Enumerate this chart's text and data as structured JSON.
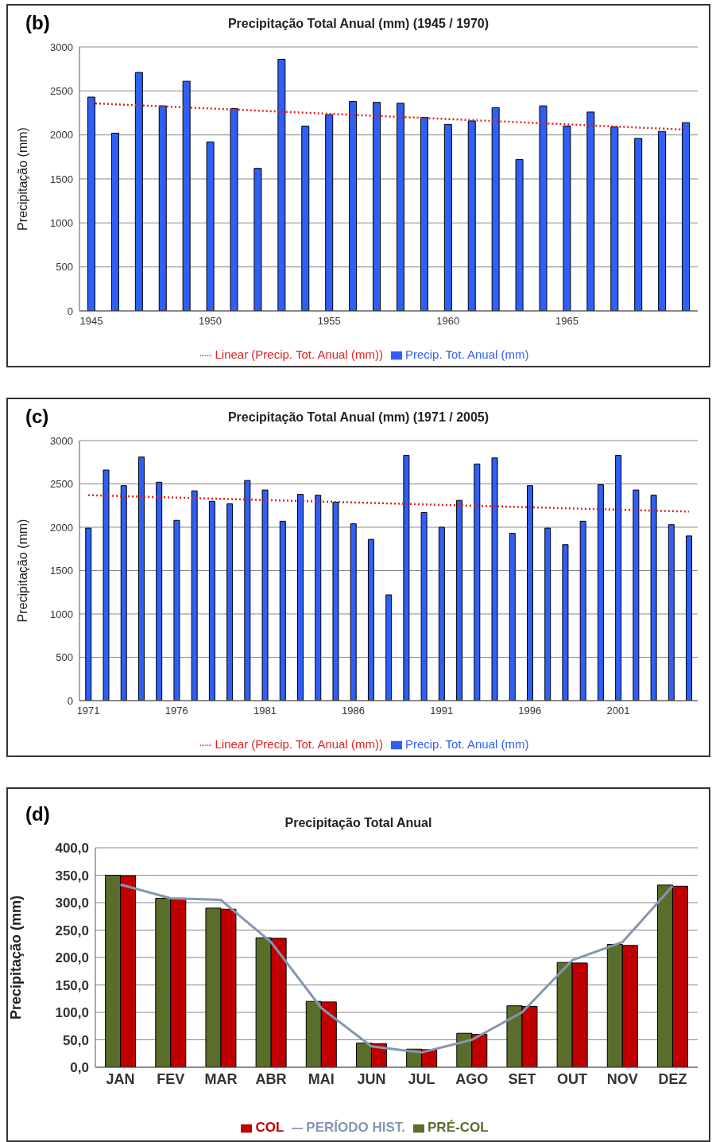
{
  "chart_data": [
    {
      "type": "bar",
      "title": "Precipitação Total Anual (mm) (1945 / 1970)",
      "ylabel": "Precipitação (mm)",
      "annotations": [
        "(b)"
      ],
      "categories": [
        "1945",
        null,
        null,
        null,
        null,
        "1950",
        null,
        null,
        null,
        null,
        "1955",
        null,
        null,
        null,
        null,
        "1960",
        null,
        null,
        null,
        null,
        "1965",
        null,
        null,
        null,
        null,
        null
      ],
      "series": [
        {
          "name": "Precip. Tot. Anual (mm)",
          "color": "#2f5ff5",
          "values": [
            2430,
            2020,
            2710,
            2330,
            2610,
            1920,
            2300,
            1620,
            2860,
            2100,
            2230,
            2380,
            2370,
            2360,
            2200,
            2120,
            2160,
            2310,
            1720,
            2330,
            2100,
            2260,
            2090,
            1960,
            2040,
            2140
          ]
        },
        {
          "name": "Linear (Precip. Tot. Anual (mm))",
          "type": "line",
          "line_style": "dotted",
          "color": "#e02020",
          "values": [
            2360,
            null,
            null,
            null,
            null,
            null,
            null,
            null,
            null,
            null,
            null,
            null,
            null,
            null,
            null,
            null,
            null,
            null,
            null,
            null,
            null,
            null,
            null,
            null,
            null,
            2060
          ]
        }
      ],
      "ylim": [
        0,
        3000
      ],
      "yticks": [
        0,
        500,
        1000,
        1500,
        2000,
        2500,
        3000
      ],
      "grid": "y",
      "legend": "bottom"
    },
    {
      "type": "bar",
      "title": "Precipitação Total Anual (mm)  (1971 / 2005)",
      "ylabel": "Precipitação (mm)",
      "annotations": [
        "(c)"
      ],
      "categories": [
        "1971",
        null,
        null,
        null,
        null,
        "1976",
        null,
        null,
        null,
        null,
        "1981",
        null,
        null,
        null,
        null,
        "1986",
        null,
        null,
        null,
        null,
        "1991",
        null,
        null,
        null,
        null,
        "1996",
        null,
        null,
        null,
        null,
        "2001",
        null,
        null,
        null,
        null
      ],
      "series": [
        {
          "name": "Precip. Tot. Anual (mm)",
          "color": "#2f5ff5",
          "values": [
            1990,
            2660,
            2480,
            2810,
            2520,
            2080,
            2420,
            2300,
            2270,
            2540,
            2430,
            2070,
            2380,
            2370,
            2290,
            2040,
            1860,
            1220,
            2830,
            2170,
            2000,
            2310,
            2730,
            2800,
            1930,
            2480,
            1990,
            1800,
            2070,
            2490,
            2830,
            2430,
            2370,
            2030,
            1900
          ]
        },
        {
          "name": "Linear (Precip. Tot. Anual (mm))",
          "type": "line",
          "line_style": "dotted",
          "color": "#e02020",
          "values": [
            2370,
            null,
            null,
            null,
            null,
            null,
            null,
            null,
            null,
            null,
            null,
            null,
            null,
            null,
            null,
            null,
            null,
            null,
            null,
            null,
            null,
            null,
            null,
            null,
            null,
            null,
            null,
            null,
            null,
            null,
            null,
            null,
            null,
            null,
            2180
          ]
        }
      ],
      "ylim": [
        0,
        3000
      ],
      "yticks": [
        0,
        500,
        1000,
        1500,
        2000,
        2500,
        3000
      ],
      "grid": "y",
      "legend": "bottom"
    },
    {
      "type": "bar",
      "title": "Precipitação Total Anual",
      "ylabel": "Precipitação (mm)",
      "annotations": [
        "(d)"
      ],
      "categories": [
        "JAN",
        "FEV",
        "MAR",
        "ABR",
        "MAI",
        "JUN",
        "JUL",
        "AGO",
        "SET",
        "OUT",
        "NOV",
        "DEZ"
      ],
      "series": [
        {
          "name": "PRÉ-COL",
          "color": "#5a6e2c",
          "values": [
            350,
            308,
            290,
            236,
            120,
            44,
            33,
            62,
            112,
            191,
            224,
            332
          ]
        },
        {
          "name": "COL",
          "color": "#c00000",
          "values": [
            349,
            308,
            288,
            235,
            119,
            43,
            32,
            60,
            111,
            190,
            222,
            330
          ]
        },
        {
          "name": "PERÍODO HIST.",
          "type": "line",
          "color": "#8497b0",
          "values": [
            333,
            308,
            305,
            228,
            108,
            38,
            27,
            50,
            100,
            195,
            228,
            330
          ]
        }
      ],
      "ylim": [
        0,
        400
      ],
      "yticks": [
        {
          "value": 0,
          "label": "0,0"
        },
        {
          "value": 50,
          "label": "50,0"
        },
        {
          "value": 100,
          "label": "100,0"
        },
        {
          "value": 150,
          "label": "150,0"
        },
        {
          "value": 200,
          "label": "200,0"
        },
        {
          "value": 250,
          "label": "250,0"
        },
        {
          "value": 300,
          "label": "300,0"
        },
        {
          "value": 350,
          "label": "350,0"
        },
        {
          "value": 400,
          "label": "400,0"
        }
      ],
      "grid": "y",
      "legend": "bottom"
    }
  ]
}
